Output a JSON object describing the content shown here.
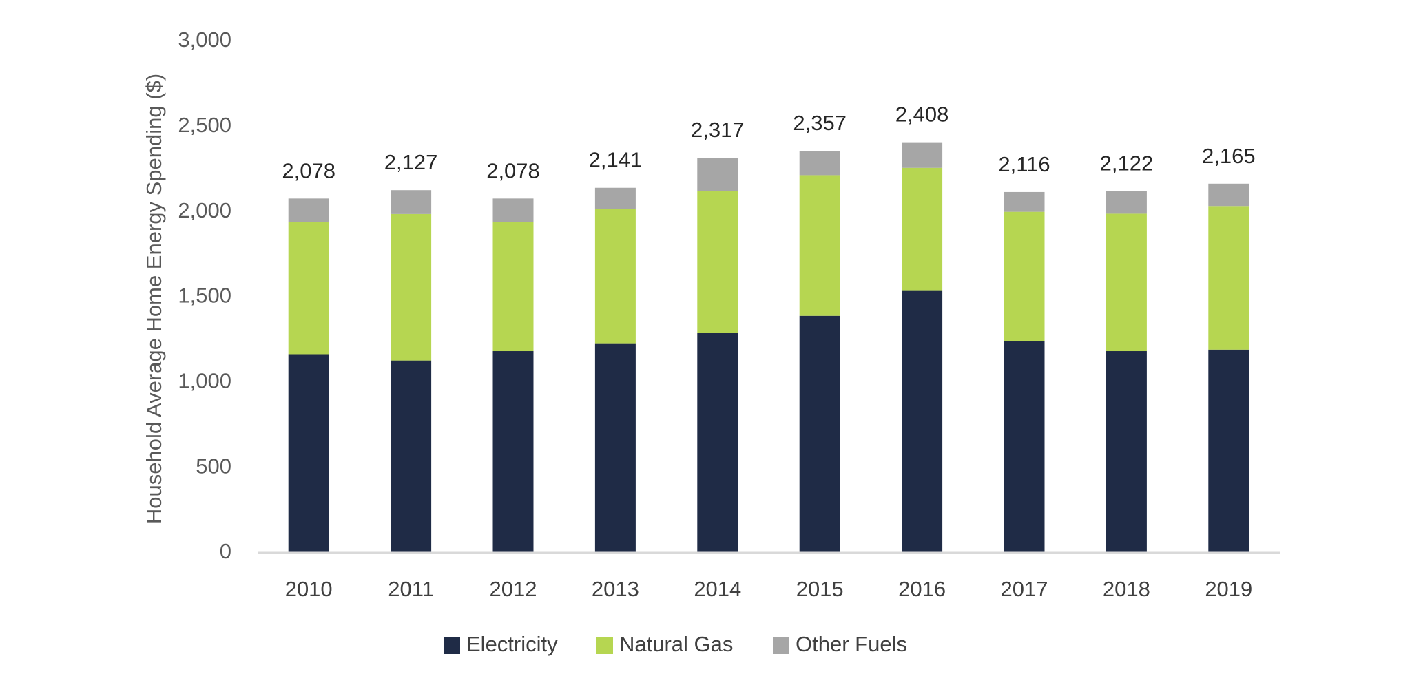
{
  "chart_data": {
    "type": "bar",
    "stacked": true,
    "categories": [
      "2010",
      "2011",
      "2012",
      "2013",
      "2014",
      "2015",
      "2016",
      "2017",
      "2018",
      "2019"
    ],
    "series": [
      {
        "name": "Electricity",
        "color": "#1f2b46",
        "values": [
          1165,
          1128,
          1183,
          1229,
          1290,
          1390,
          1540,
          1243,
          1183,
          1192
        ]
      },
      {
        "name": "Natural Gas",
        "color": "#b6d651",
        "values": [
          776,
          859,
          758,
          788,
          830,
          825,
          718,
          757,
          806,
          842
        ]
      },
      {
        "name": "Other Fuels",
        "color": "#a6a6a6",
        "values": [
          137,
          140,
          137,
          124,
          197,
          142,
          150,
          116,
          133,
          131
        ]
      }
    ],
    "totals": [
      "2,078",
      "2,127",
      "2,078",
      "2,141",
      "2,317",
      "2,357",
      "2,408",
      "2,116",
      "2,122",
      "2,165"
    ],
    "total_values": [
      2078,
      2127,
      2078,
      2141,
      2317,
      2357,
      2408,
      2116,
      2122,
      2165
    ],
    "ylabel": "Household Average Home Energy Spending ($)",
    "xlabel": "",
    "ylim": [
      0,
      3000
    ],
    "yticks": [
      "0",
      "500",
      "1,000",
      "1,500",
      "2,000",
      "2,500",
      "3,000"
    ],
    "ytick_values": [
      0,
      500,
      1000,
      1500,
      2000,
      2500,
      3000
    ],
    "grid": false,
    "legend_position": "bottom"
  }
}
